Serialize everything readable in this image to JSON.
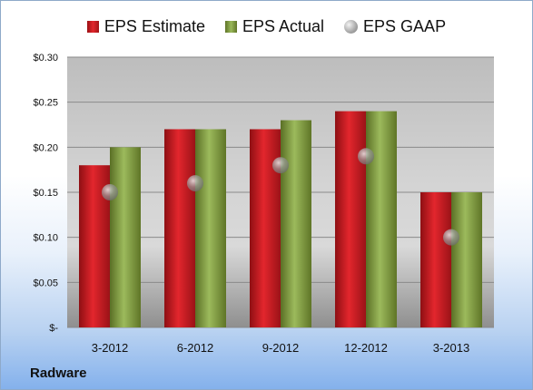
{
  "legend": {
    "estimate": "EPS Estimate",
    "actual": "EPS Actual",
    "gaap": "EPS GAAP"
  },
  "company": "Radware",
  "colors": {
    "estimate": "#d42027",
    "actual": "#88a94a",
    "gaap": "#8c8c8c"
  },
  "chart_data": {
    "type": "bar",
    "categories": [
      "3-2012",
      "6-2012",
      "9-2012",
      "12-2012",
      "3-2013"
    ],
    "series": [
      {
        "name": "EPS Estimate",
        "values": [
          0.18,
          0.22,
          0.22,
          0.24,
          0.15
        ]
      },
      {
        "name": "EPS Actual",
        "values": [
          0.2,
          0.22,
          0.23,
          0.24,
          0.15
        ]
      },
      {
        "name": "EPS GAAP",
        "marker": "circle",
        "values": [
          0.15,
          0.16,
          0.18,
          0.19,
          0.1
        ]
      }
    ],
    "ylim": [
      0,
      0.3
    ],
    "yticks": [
      0,
      0.05,
      0.1,
      0.15,
      0.2,
      0.25,
      0.3
    ],
    "ytick_labels": [
      "$-",
      "$0.05",
      "$0.10",
      "$0.15",
      "$0.20",
      "$0.25",
      "$0.30"
    ],
    "legend_position": "top",
    "grid": true
  }
}
